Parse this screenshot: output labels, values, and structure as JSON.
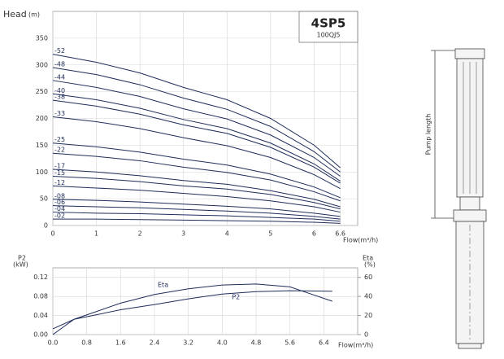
{
  "chart_data": [
    {
      "type": "line",
      "title": "4SP5",
      "subtitle": "100QJ5",
      "ylabel": "Head",
      "ylabel_unit": "(m)",
      "xlabel": "Flow(m³/h)",
      "x": [
        0,
        1,
        2,
        3,
        4,
        5,
        6,
        6.6
      ],
      "xlim": [
        0,
        7.0
      ],
      "xticks": [
        0,
        1,
        2,
        3,
        4,
        5,
        6,
        6.6
      ],
      "ylim": [
        0,
        400
      ],
      "yticks": [
        0,
        50,
        100,
        150,
        200,
        250,
        300,
        350
      ],
      "grid": true,
      "series": [
        {
          "name": "-52",
          "color": "#1f2d5a",
          "values": [
            320,
            305,
            285,
            258,
            235,
            200,
            150,
            108
          ]
        },
        {
          "name": "-48",
          "color": "#1f2d5a",
          "values": [
            295,
            282,
            263,
            238,
            217,
            185,
            138,
            100
          ]
        },
        {
          "name": "-44",
          "color": "#1f2d5a",
          "values": [
            271,
            258,
            241,
            218,
            199,
            169,
            127,
            92
          ]
        },
        {
          "name": "-40",
          "color": "#1f2d5a",
          "values": [
            246,
            235,
            219,
            198,
            181,
            154,
            115,
            83
          ]
        },
        {
          "name": "-38",
          "color": "#1f2d5a",
          "values": [
            234,
            223,
            208,
            188,
            172,
            146,
            109,
            79
          ]
        },
        {
          "name": "-33",
          "color": "#1f2d5a",
          "values": [
            203,
            194,
            181,
            164,
            149,
            127,
            95,
            69
          ]
        },
        {
          "name": "-25",
          "color": "#1f2d5a",
          "values": [
            154,
            147,
            137,
            124,
            113,
            96,
            72,
            52
          ]
        },
        {
          "name": "-22",
          "color": "#1f2d5a",
          "values": [
            135,
            129,
            121,
            109,
            99,
            85,
            63,
            46
          ]
        },
        {
          "name": "-17",
          "color": "#1f2d5a",
          "values": [
            105,
            100,
            93,
            84,
            77,
            65,
            49,
            35
          ]
        },
        {
          "name": "-15",
          "color": "#1f2d5a",
          "values": [
            92,
            88,
            82,
            74,
            68,
            58,
            43,
            31
          ]
        },
        {
          "name": "-12",
          "color": "#1f2d5a",
          "values": [
            74,
            70,
            66,
            60,
            54,
            46,
            35,
            25
          ]
        },
        {
          "name": "-08",
          "color": "#1f2d5a",
          "values": [
            49,
            47,
            44,
            40,
            36,
            31,
            23,
            17
          ]
        },
        {
          "name": "-06",
          "color": "#1f2d5a",
          "values": [
            37,
            35,
            33,
            30,
            27,
            23,
            17,
            12
          ]
        },
        {
          "name": "-04",
          "color": "#1f2d5a",
          "values": [
            25,
            23,
            22,
            20,
            18,
            15,
            12,
            8
          ]
        },
        {
          "name": "-02",
          "color": "#1f2d5a",
          "values": [
            12,
            12,
            11,
            10,
            9,
            8,
            6,
            4
          ]
        }
      ]
    },
    {
      "type": "line",
      "ylabel": "P2",
      "ylabel_unit": "(kW)",
      "y2label": "Eta",
      "y2label_unit": "(%)",
      "xlabel": "Flow(m³/h)",
      "x": [
        0,
        0.5,
        1.6,
        2.4,
        3.2,
        4.0,
        4.8,
        5.6,
        6.6
      ],
      "xlim": [
        0,
        7.2
      ],
      "xticks": [
        {
          "value": 0,
          "label": "0.0"
        },
        {
          "value": 0.8,
          "label": "0.8"
        },
        {
          "value": 1.6,
          "label": "1.6"
        },
        {
          "value": 2.4,
          "label": "2.4"
        },
        {
          "value": 3.2,
          "label": "3.2"
        },
        {
          "value": 4.0,
          "label": "4.0"
        },
        {
          "value": 4.8,
          "label": "4.8"
        },
        {
          "value": 5.6,
          "label": "5.6"
        },
        {
          "value": 6.4,
          "label": "6.4"
        }
      ],
      "ylim": [
        0,
        0.14
      ],
      "yticks": [
        {
          "value": 0,
          "label": "0.00"
        },
        {
          "value": 0.04,
          "label": "0.04"
        },
        {
          "value": 0.08,
          "label": "0.08"
        },
        {
          "value": 0.12,
          "label": "0.12"
        }
      ],
      "y2lim": [
        0,
        70
      ],
      "y2ticks": [
        0,
        20,
        40,
        60
      ],
      "grid": true,
      "series": [
        {
          "name": "Eta",
          "color": "#1f2d5a",
          "axis": "y2",
          "values": [
            0,
            16,
            33,
            42,
            48,
            52,
            53,
            50,
            35
          ]
        },
        {
          "name": "P2",
          "color": "#1f2d5a",
          "values": [
            0.012,
            0.032,
            0.052,
            0.063,
            0.075,
            0.085,
            0.09,
            0.092,
            0.091
          ]
        }
      ]
    }
  ],
  "pump_diagram": {
    "label": "Pump length"
  }
}
